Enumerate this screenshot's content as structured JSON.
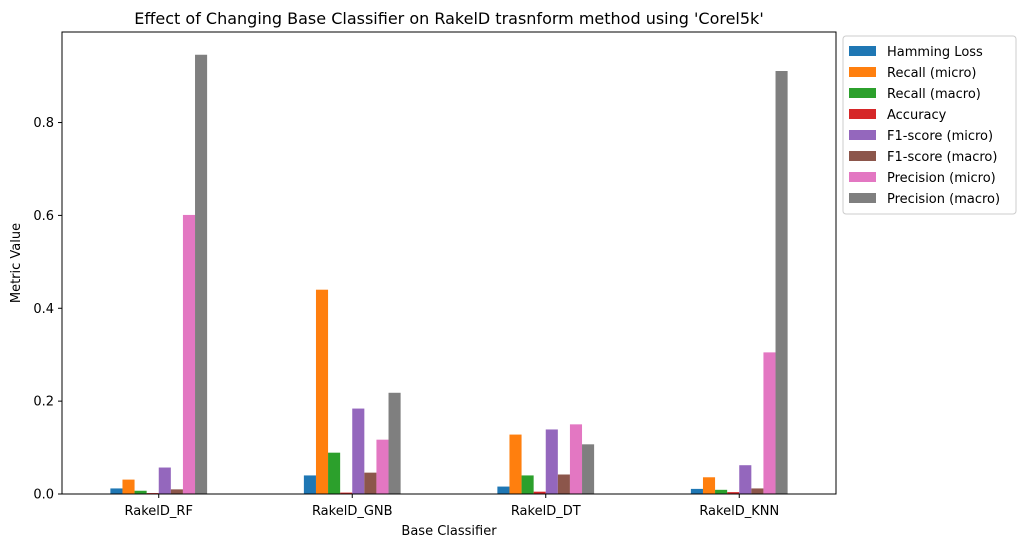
{
  "chart_data": {
    "type": "bar",
    "title": "Effect of Changing Base Classifier on RakelD trasnform method using 'Corel5k'",
    "xlabel": "Base Classifier",
    "ylabel": "Metric Value",
    "categories": [
      "RakelD_RF",
      "RakelD_GNB",
      "RakelD_DT",
      "RakelD_KNN"
    ],
    "ylim": [
      0,
      0.995
    ],
    "yticks": [
      0.0,
      0.2,
      0.4,
      0.6,
      0.8
    ],
    "ytick_labels": [
      "0.0",
      "0.2",
      "0.4",
      "0.6",
      "0.8"
    ],
    "grid": false,
    "legend_position": "outside-top-right",
    "series": [
      {
        "name": "Hamming Loss",
        "color": "#1f77b4",
        "values": [
          0.012,
          0.04,
          0.016,
          0.011
        ]
      },
      {
        "name": "Recall (micro)",
        "color": "#ff7f0e",
        "values": [
          0.031,
          0.44,
          0.128,
          0.036
        ]
      },
      {
        "name": "Recall (macro)",
        "color": "#2ca02c",
        "values": [
          0.007,
          0.089,
          0.04,
          0.009
        ]
      },
      {
        "name": "Accuracy",
        "color": "#d62728",
        "values": [
          0.002,
          0.003,
          0.005,
          0.004
        ]
      },
      {
        "name": "F1-score (micro)",
        "color": "#9467bd",
        "values": [
          0.057,
          0.184,
          0.139,
          0.062
        ]
      },
      {
        "name": "F1-score (macro)",
        "color": "#8c564b",
        "values": [
          0.01,
          0.046,
          0.042,
          0.012
        ]
      },
      {
        "name": "Precision (micro)",
        "color": "#e377c2",
        "values": [
          0.601,
          0.117,
          0.15,
          0.305
        ]
      },
      {
        "name": "Precision (macro)",
        "color": "#7f7f7f",
        "values": [
          0.946,
          0.218,
          0.107,
          0.911
        ]
      }
    ]
  }
}
